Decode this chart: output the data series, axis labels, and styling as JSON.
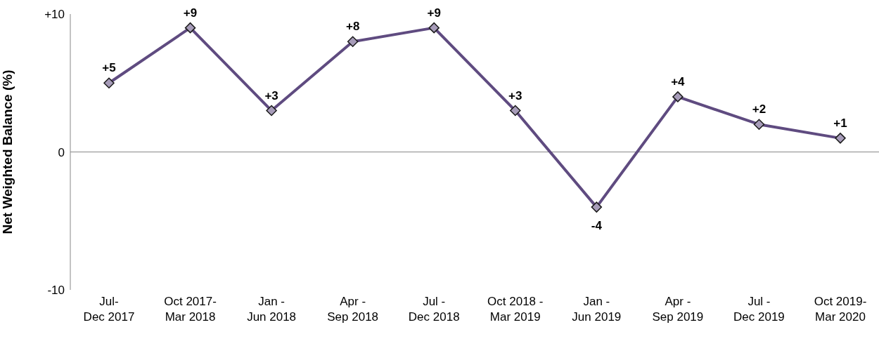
{
  "chart_data": {
    "type": "line",
    "ylabel": "Net Weighted Balance (%)",
    "categories": [
      "Jul-\nDec 2017",
      "Oct 2017-\nMar 2018",
      "Jan -\nJun 2018",
      "Apr -\nSep 2018",
      "Jul -\nDec 2018",
      "Oct 2018 -\nMar 2019",
      "Jan -\nJun 2019",
      "Apr -\nSep 2019",
      "Jul -\nDec 2019",
      "Oct 2019-\nMar 2020"
    ],
    "series": [
      {
        "color": "#5f4b80",
        "values": [
          5,
          9,
          3,
          8,
          9,
          3,
          -4,
          4,
          2,
          1
        ]
      }
    ],
    "value_labels": [
      "+5",
      "+9",
      "+3",
      "+8",
      "+9",
      "+3",
      "-4",
      "+4",
      "+2",
      "+1"
    ],
    "ylim": [
      -10,
      10
    ],
    "yticks": [
      {
        "value": 10,
        "label": "+10"
      },
      0,
      -10
    ],
    "ref_lines": [
      {
        "axis": "y",
        "value": 0,
        "color": "#888888"
      }
    ],
    "marker": "diamond",
    "line_style": "solid"
  }
}
